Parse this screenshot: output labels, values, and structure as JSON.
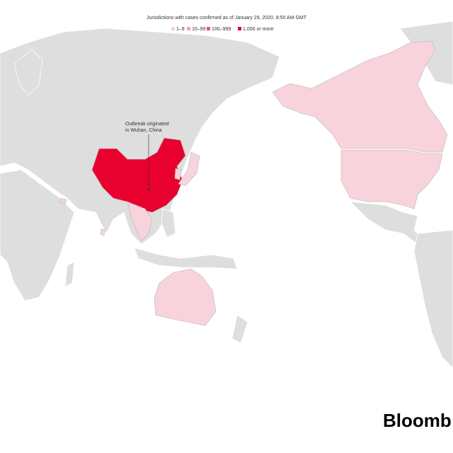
{
  "header": {
    "title": "Jurisdictions with cases confirmed as of January 29, 2020, 8:50 AM GMT"
  },
  "legend": [
    {
      "label": "1–9",
      "color": "#f8d3dc"
    },
    {
      "label": "10–99",
      "color": "#f2a3b6"
    },
    {
      "label": "100–999",
      "color": "#e45579"
    },
    {
      "label": "1,000 or more",
      "color": "#e8002f"
    }
  ],
  "annotation": {
    "lines": [
      "Outbreak originated",
      "in Wuhan, China"
    ]
  },
  "brand": "Bloomb"
}
